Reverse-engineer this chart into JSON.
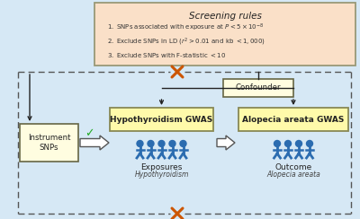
{
  "bg_color": "#d6e8f5",
  "screening_box_color": "#fae0c8",
  "screening_border": "#999977",
  "screening_title": "Screening rules",
  "rule1": "SNPs associated with exposure at $P < 5\\times10^{-8}$",
  "rule2": "Exclude SNPs in LD ($r^{2} > 0.01$ and kb $< 1,000$)",
  "rule3": "Exclude SNPs with F-statistic $< 10$",
  "instrument_box_color": "#fffde0",
  "instrument_border": "#666644",
  "instrument_label": "Instrument\nSNPs",
  "hypo_box_color": "#fffaaa",
  "hypo_border": "#888855",
  "hypo_label": "Hypothyroidism GWAS",
  "alop_box_color": "#fffaaa",
  "alop_border": "#888855",
  "alop_label": "Alopecia areata GWAS",
  "confounder_box_color": "#fffde0",
  "confounder_border": "#666644",
  "confounder_label": "Confounder",
  "exposures_label": "Exposures",
  "exposures_sub": "Hypothyroidism",
  "outcome_label": "Outcome",
  "outcome_sub": "Alopecia areata",
  "check_color": "#22aa22",
  "cross_color": "#cc5500",
  "arrow_color": "#222222",
  "dashed_color": "#555555",
  "person_color": "#2b6cb0"
}
